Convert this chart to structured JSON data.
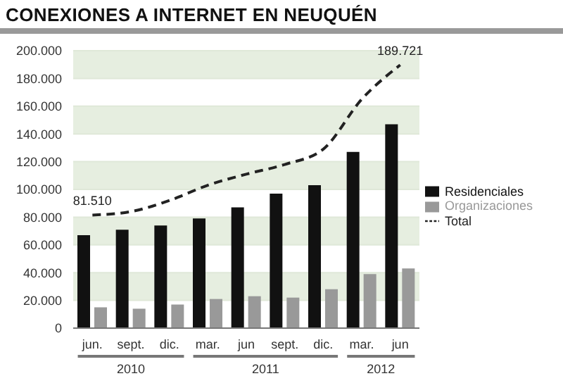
{
  "chart_data": {
    "type": "bar",
    "title": "CONEXIONES A INTERNET EN NEUQUÉN",
    "categories": [
      "jun.",
      "sept.",
      "dic.",
      "mar.",
      "jun",
      "sept.",
      "dic.",
      "mar.",
      "jun"
    ],
    "series": [
      {
        "name": "Residenciales",
        "color": "#111111",
        "values": [
          67000,
          71000,
          74000,
          79000,
          87000,
          97000,
          103000,
          127000,
          147000
        ]
      },
      {
        "name": "Organizaciones",
        "color": "#999999",
        "values": [
          15000,
          14000,
          17000,
          21000,
          23000,
          22000,
          28000,
          39000,
          43000
        ]
      },
      {
        "name": "Total",
        "type": "line",
        "color": "#222222",
        "line_style": "dashed",
        "marker": "none",
        "values": [
          81510,
          84000,
          92000,
          103000,
          111000,
          118000,
          129000,
          165000,
          189721
        ],
        "value_labels": [
          "81.510",
          null,
          null,
          null,
          null,
          null,
          null,
          null,
          "189.721"
        ]
      }
    ],
    "ylim": [
      0,
      200000
    ],
    "yticks": [
      {
        "value": 0,
        "label": "0"
      },
      {
        "value": 20000,
        "label": "20.000"
      },
      {
        "value": 40000,
        "label": "40.000"
      },
      {
        "value": 60000,
        "label": "60.000"
      },
      {
        "value": 80000,
        "label": "80.000"
      },
      {
        "value": 100000,
        "label": "100.000"
      },
      {
        "value": 120000,
        "label": "120.000"
      },
      {
        "value": 140000,
        "label": "140.000"
      },
      {
        "value": 160000,
        "label": "160.000"
      },
      {
        "value": 180000,
        "label": "180.000"
      },
      {
        "value": 200000,
        "label": "200.000"
      }
    ],
    "grid": "y",
    "legend": "right",
    "annotations": [
      "2010",
      "2011",
      "2012"
    ]
  }
}
